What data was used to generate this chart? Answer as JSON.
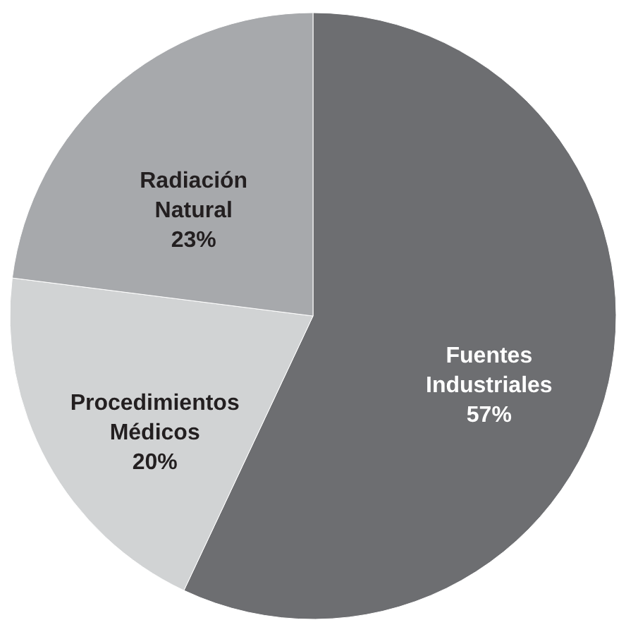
{
  "chart_data": {
    "type": "pie",
    "categories": [
      "Fuentes Industriales",
      "Procedimientos Médicos",
      "Radiación Natural"
    ],
    "values": [
      57,
      20,
      23
    ],
    "colors": [
      "#6d6e71",
      "#d1d3d4",
      "#a7a9ac"
    ],
    "value_labels": [
      "57%",
      "20%",
      "23%"
    ]
  }
}
